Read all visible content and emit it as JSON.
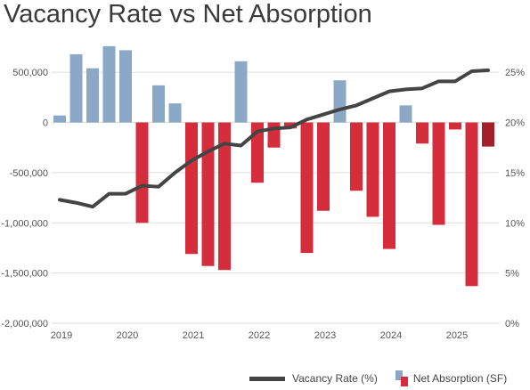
{
  "chart_data": {
    "type": "bar",
    "title": "Vacancy Rate vs Net Absorption",
    "x_labels": [
      "2019",
      "2020",
      "2021",
      "2022",
      "2023",
      "2024",
      "2025"
    ],
    "y_left": {
      "lim": [
        -2000000,
        750000
      ],
      "ticks": [
        500000,
        0,
        -500000,
        -1000000,
        -1500000,
        -2000000
      ],
      "tick_labels": [
        "500,000",
        "0",
        "-500,000",
        "-1,000,000",
        "-1,500,000",
        "-2,000,000"
      ]
    },
    "y_right": {
      "lim": [
        0,
        27.5
      ],
      "ticks": [
        25,
        20,
        15,
        10,
        5,
        0
      ],
      "tick_labels": [
        "25%",
        "20%",
        "15%",
        "10%",
        "5%",
        "0%"
      ]
    },
    "series": [
      {
        "name": "Net Absorption (SF)",
        "type": "bar",
        "axis": "left",
        "positive_color": "#8ba9c6",
        "negative_color": "#d62d3c",
        "last_color": "#a3202b",
        "values": [
          70000,
          680000,
          540000,
          760000,
          720000,
          -1000000,
          370000,
          190000,
          -1310000,
          -1430000,
          -1470000,
          610000,
          -600000,
          -250000,
          -60000,
          -1300000,
          -880000,
          420000,
          -680000,
          -940000,
          -1260000,
          170000,
          -210000,
          -1020000,
          -70000,
          -1630000,
          -240000
        ]
      },
      {
        "name": "Vacancy Rate (%)",
        "type": "line",
        "axis": "right",
        "color": "#444444",
        "values": [
          12.3,
          12.0,
          11.6,
          12.9,
          12.9,
          13.7,
          13.6,
          15.0,
          16.2,
          17.1,
          17.9,
          17.7,
          19.1,
          19.4,
          19.5,
          20.3,
          20.8,
          21.3,
          21.7,
          22.4,
          23.1,
          23.3,
          23.4,
          24.1,
          24.1,
          25.1,
          25.2
        ]
      }
    ],
    "grid": true,
    "legend": "bottom-right"
  }
}
